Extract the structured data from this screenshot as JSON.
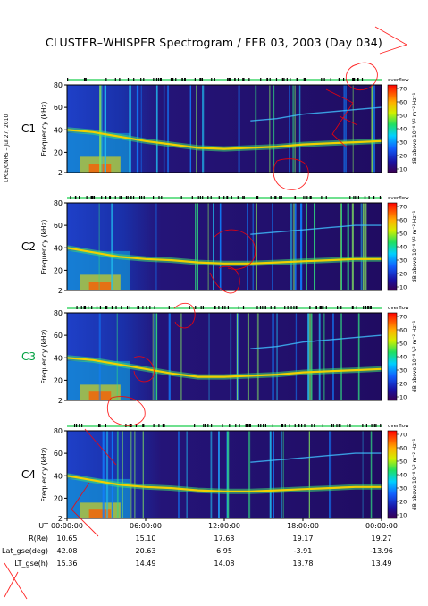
{
  "title": "CLUSTER–WHISPER Spectrogram / FEB 03, 2003 (Day 034)",
  "side_credit": "LPCE/CNRS – Jul 27, 2010",
  "colors": {
    "status_bar": "#6fe08f",
    "c3_label": "#00a040",
    "annotation": "#ff0000",
    "background_low": "#1a0a5a"
  },
  "chart_data": [
    {
      "type": "heatmap",
      "panel": "C1",
      "ylabel": "Frequency (kHz)",
      "yticks": [
        2,
        20,
        40,
        60,
        80
      ],
      "ylim": [
        2,
        80
      ],
      "colorbar": {
        "label": "dB above 10⁻⁸ V² m⁻² Hz⁻¹",
        "ticks": [
          10,
          20,
          30,
          40,
          50,
          60,
          70
        ],
        "range": [
          10,
          70
        ],
        "marker": "overflow"
      },
      "plasma_line": {
        "x": [
          0,
          2,
          4,
          6,
          8,
          10,
          12,
          14,
          16,
          18,
          20,
          22,
          24
        ],
        "y": [
          40,
          38,
          34,
          30,
          27,
          24,
          23,
          24,
          25,
          27,
          28,
          29,
          30
        ]
      },
      "label_color": "#000000"
    },
    {
      "type": "heatmap",
      "panel": "C2",
      "ylabel": "Frequency (kHz)",
      "yticks": [
        2,
        20,
        40,
        60,
        80
      ],
      "ylim": [
        2,
        80
      ],
      "colorbar": {
        "label": "dB above 10⁻⁸ V² m⁻² Hz⁻¹",
        "ticks": [
          10,
          20,
          30,
          40,
          50,
          60,
          70
        ],
        "range": [
          10,
          70
        ],
        "marker": "overflow"
      },
      "plasma_line": {
        "x": [
          0,
          2,
          4,
          6,
          8,
          10,
          12,
          14,
          16,
          18,
          20,
          22,
          24
        ],
        "y": [
          40,
          36,
          32,
          30,
          29,
          27,
          26,
          26,
          27,
          28,
          29,
          30,
          30
        ]
      },
      "label_color": "#000000"
    },
    {
      "type": "heatmap",
      "panel": "C3",
      "ylabel": "Frequency (kHz)",
      "yticks": [
        2,
        20,
        40,
        60,
        80
      ],
      "ylim": [
        2,
        80
      ],
      "colorbar": {
        "label": "dB above 10⁻⁸ V² m⁻² Hz⁻¹",
        "ticks": [
          10,
          20,
          30,
          40,
          50,
          60,
          70
        ],
        "range": [
          10,
          70
        ],
        "marker": "overflow"
      },
      "plasma_line": {
        "x": [
          0,
          2,
          4,
          6,
          8,
          10,
          12,
          14,
          16,
          18,
          20,
          22,
          24
        ],
        "y": [
          40,
          38,
          34,
          30,
          26,
          23,
          23,
          24,
          25,
          27,
          28,
          29,
          30
        ]
      },
      "label_color": "#00a040"
    },
    {
      "type": "heatmap",
      "panel": "C4",
      "ylabel": "Frequency (kHz)",
      "yticks": [
        2,
        20,
        40,
        60,
        80
      ],
      "ylim": [
        2,
        80
      ],
      "colorbar": {
        "label": "dB above 10⁻⁸ V² m⁻² Hz⁻¹",
        "ticks": [
          10,
          20,
          30,
          40,
          50,
          60,
          70
        ],
        "range": [
          10,
          70
        ],
        "marker": "overflow"
      },
      "plasma_line": {
        "x": [
          0,
          2,
          4,
          6,
          8,
          10,
          12,
          14,
          16,
          18,
          20,
          22,
          24
        ],
        "y": [
          40,
          36,
          32,
          30,
          29,
          27,
          26,
          26,
          27,
          28,
          29,
          30,
          30
        ]
      },
      "label_color": "#000000"
    }
  ],
  "panel_labels": [
    "C1",
    "C2",
    "C3",
    "C4"
  ],
  "ylabel": "Frequency (kHz)",
  "yticks": [
    "80",
    "60",
    "40",
    "20",
    "2"
  ],
  "colorbar_ticks": [
    "70",
    "60",
    "50",
    "40",
    "30",
    "20",
    "10"
  ],
  "colorbar_top_label": "overflow",
  "colorbar_label": "dB above 10⁻⁸ V² m⁻² Hz⁻¹",
  "orbit_table": {
    "rows": [
      {
        "label": "UT",
        "values": [
          "00:00:00",
          "06:00:00",
          "12:00:00",
          "18:00:00",
          "00:00:00"
        ]
      },
      {
        "label": "R(Re)",
        "values": [
          "10.65",
          "15.10",
          "17.63",
          "19.17",
          "19.27"
        ]
      },
      {
        "label": "Lat_gse(deg)",
        "values": [
          "42.08",
          "20.63",
          "6.95",
          "-3.91",
          "-13.96"
        ]
      },
      {
        "label": "LT_gse(h)",
        "values": [
          "15.36",
          "14.49",
          "14.08",
          "13.78",
          "13.49"
        ]
      }
    ]
  }
}
